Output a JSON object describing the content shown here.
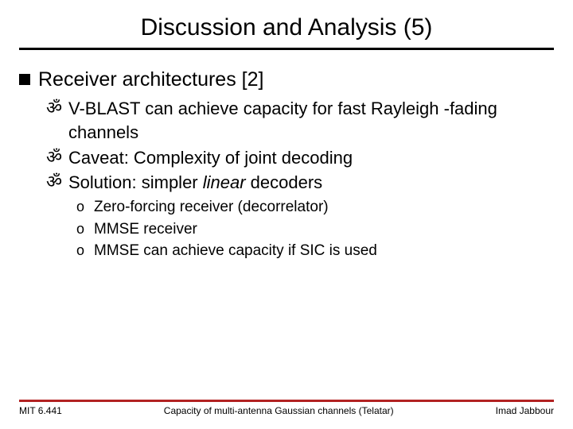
{
  "colors": {
    "title_rule": "#000000",
    "footer_rule": "#b22222",
    "text": "#000000",
    "background": "#ffffff"
  },
  "fonts": {
    "family": "Verdana",
    "title_size_pt": 30,
    "lvl1_size_pt": 25,
    "lvl2_size_pt": 22,
    "lvl3_size_pt": 19,
    "footer_size_pt": 12
  },
  "title": "Discussion and Analysis (5)",
  "bullets": {
    "lvl1": [
      {
        "text": "Receiver architectures [2]"
      }
    ],
    "lvl2": [
      {
        "text": "V-BLAST can achieve capacity for fast Rayleigh -fading channels"
      },
      {
        "text": "Caveat: Complexity of joint decoding"
      },
      {
        "prefix": "Solution: simpler ",
        "italic": "linear",
        "suffix": " decoders"
      }
    ],
    "lvl3": [
      {
        "text": "Zero-forcing receiver (decorrelator)"
      },
      {
        "text": "MMSE receiver"
      },
      {
        "text": "MMSE can achieve capacity if SIC is used"
      }
    ]
  },
  "bullet_glyphs": {
    "lvl1": "square",
    "lvl2": "ॐ",
    "lvl3": "o"
  },
  "footer": {
    "left": "MIT 6.441",
    "center": "Capacity of multi-antenna Gaussian channels (Telatar)",
    "right": "Imad Jabbour"
  }
}
